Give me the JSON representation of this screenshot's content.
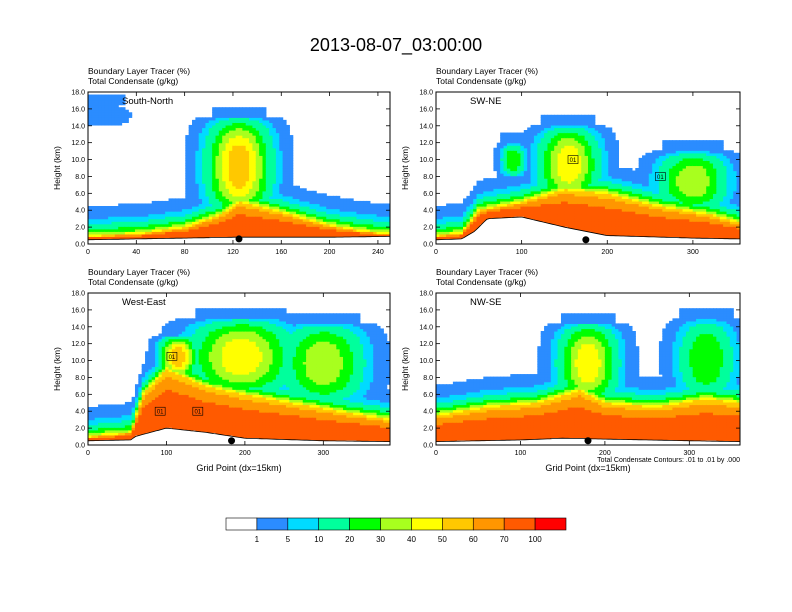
{
  "title": "2013-08-07_03:00:00",
  "palette": {
    "levels": [
      0,
      1,
      5,
      10,
      20,
      30,
      40,
      50,
      60,
      70,
      100
    ],
    "colors": [
      "#ffffff",
      "#2b8cff",
      "#00dbff",
      "#00ff9c",
      "#00ff00",
      "#a8ff1e",
      "#ffff00",
      "#ffc800",
      "#ff9600",
      "#ff5a00",
      "#ff0000"
    ],
    "labels": [
      "1",
      "5",
      "10",
      "20",
      "30",
      "40",
      "50",
      "60",
      "70",
      "100"
    ]
  },
  "contour_note": "Total Condensate Contours: .01 to .01 by .000",
  "chart_data": [
    {
      "type": "heatmap",
      "name": "South-North",
      "title_line1": "Boundary Layer Tracer    (%)",
      "title_line2": "Total Condensate    (g/kg)",
      "panel_label": "South-North",
      "ylabel": "Height (km)",
      "xlabel": "",
      "xlim": [
        0,
        250
      ],
      "ylim": [
        0,
        18
      ],
      "xticks": [
        0,
        40,
        80,
        120,
        160,
        200,
        240
      ],
      "xtick_labels": [
        "0",
        "40",
        "80",
        "120",
        "160",
        "200",
        "240"
      ],
      "yticks": [
        0,
        2,
        4,
        6,
        8,
        10,
        12,
        14,
        16,
        18
      ],
      "ytick_labels": [
        "0.0",
        "2.0",
        "4.0",
        "6.0",
        "8.0",
        "10.0",
        "12.0",
        "14.0",
        "16.0",
        "18.0"
      ],
      "terrain": [
        [
          0,
          0.5
        ],
        [
          40,
          0.6
        ],
        [
          80,
          0.7
        ],
        [
          120,
          0.8
        ],
        [
          160,
          0.8
        ],
        [
          200,
          0.8
        ],
        [
          250,
          0.9
        ]
      ],
      "tracer_layer_top": [
        [
          0,
          1.0
        ],
        [
          40,
          1.2
        ],
        [
          80,
          2.0
        ],
        [
          110,
          3.5
        ],
        [
          125,
          5.0
        ],
        [
          140,
          4.5
        ],
        [
          160,
          3.8
        ],
        [
          200,
          2.2
        ],
        [
          230,
          1.5
        ],
        [
          250,
          1.2
        ]
      ],
      "plumes": [
        {
          "x": 125,
          "y_base": 3.5,
          "y_top": 15.0,
          "width": 45,
          "peak": 60
        },
        {
          "x": 10,
          "y_base": 14.0,
          "y_top": 16.5,
          "width": 40,
          "peak": 5
        }
      ],
      "marker": {
        "x": 125,
        "y": 0.6
      }
    },
    {
      "type": "heatmap",
      "name": "SW-NE",
      "title_line1": "Boundary Layer Tracer    (%)",
      "title_line2": "Total Condensate    (g/kg)",
      "panel_label": "SW-NE",
      "ylabel": "Height (km)",
      "xlabel": "",
      "xlim": [
        0,
        355
      ],
      "ylim": [
        0,
        18
      ],
      "xticks": [
        0,
        100,
        200,
        300
      ],
      "xtick_labels": [
        "0",
        "100",
        "200",
        "300"
      ],
      "yticks": [
        0,
        2,
        4,
        6,
        8,
        10,
        12,
        14,
        16,
        18
      ],
      "ytick_labels": [
        "0.0",
        "2.0",
        "4.0",
        "6.0",
        "8.0",
        "10.0",
        "12.0",
        "14.0",
        "16.0",
        "18.0"
      ],
      "terrain": [
        [
          0,
          0.5
        ],
        [
          30,
          0.6
        ],
        [
          45,
          1.5
        ],
        [
          60,
          3.0
        ],
        [
          100,
          3.2
        ],
        [
          150,
          2.0
        ],
        [
          200,
          1.0
        ],
        [
          300,
          0.7
        ],
        [
          355,
          0.6
        ]
      ],
      "tracer_layer_top": [
        [
          0,
          1.0
        ],
        [
          30,
          1.3
        ],
        [
          50,
          4.0
        ],
        [
          100,
          5.0
        ],
        [
          150,
          6.5
        ],
        [
          200,
          6.0
        ],
        [
          260,
          4.5
        ],
        [
          320,
          3.5
        ],
        [
          355,
          2.5
        ]
      ],
      "plumes": [
        {
          "x": 155,
          "y_base": 5.0,
          "y_top": 14.0,
          "width": 60,
          "peak": 50
        },
        {
          "x": 300,
          "y_base": 4.0,
          "y_top": 11.0,
          "width": 70,
          "peak": 40
        },
        {
          "x": 90,
          "y_base": 8.0,
          "y_top": 12.0,
          "width": 25,
          "peak": 30
        }
      ],
      "marker": {
        "x": 175,
        "y": 0.5
      },
      "box_labels": [
        {
          "x": 160,
          "y": 10.0,
          "text": "01"
        },
        {
          "x": 262,
          "y": 8.0,
          "text": "01"
        }
      ]
    },
    {
      "type": "heatmap",
      "name": "West-East",
      "title_line1": "Boundary Layer Tracer    (%)",
      "title_line2": "Total Condensate    (g/kg)",
      "panel_label": "West-East",
      "ylabel": "Height (km)",
      "xlabel": "Grid Point (dx=15km)",
      "xlim": [
        0,
        385
      ],
      "ylim": [
        0,
        18
      ],
      "xticks": [
        0,
        100,
        200,
        300
      ],
      "xtick_labels": [
        "0",
        "100",
        "200",
        "300"
      ],
      "yticks": [
        0,
        2,
        4,
        6,
        8,
        10,
        12,
        14,
        16,
        18
      ],
      "ytick_labels": [
        "0.0",
        "2.0",
        "4.0",
        "6.0",
        "8.0",
        "10.0",
        "12.0",
        "14.0",
        "16.0",
        "18.0"
      ],
      "terrain": [
        [
          0,
          0.5
        ],
        [
          55,
          0.6
        ],
        [
          60,
          1.0
        ],
        [
          100,
          2.0
        ],
        [
          150,
          1.5
        ],
        [
          200,
          0.8
        ],
        [
          300,
          0.5
        ],
        [
          385,
          0.4
        ]
      ],
      "tracer_layer_top": [
        [
          0,
          1.0
        ],
        [
          55,
          1.5
        ],
        [
          70,
          6.0
        ],
        [
          100,
          9.0
        ],
        [
          150,
          7.0
        ],
        [
          200,
          6.0
        ],
        [
          260,
          5.0
        ],
        [
          320,
          4.0
        ],
        [
          385,
          3.0
        ]
      ],
      "plumes": [
        {
          "x": 195,
          "y_base": 6.0,
          "y_top": 15.0,
          "width": 110,
          "peak": 50
        },
        {
          "x": 300,
          "y_base": 5.0,
          "y_top": 14.5,
          "width": 90,
          "peak": 40
        },
        {
          "x": 115,
          "y_base": 8.0,
          "y_top": 13.0,
          "width": 40,
          "peak": 60
        }
      ],
      "marker": {
        "x": 183,
        "y": 0.5
      },
      "box_labels": [
        {
          "x": 107,
          "y": 10.5,
          "text": "01"
        },
        {
          "x": 92,
          "y": 4.0,
          "text": "01"
        },
        {
          "x": 140,
          "y": 4.0,
          "text": "01"
        }
      ]
    },
    {
      "type": "heatmap",
      "name": "NW-SE",
      "title_line1": "Boundary Layer Tracer    (%)",
      "title_line2": "Total Condensate    (g/kg)",
      "panel_label": "NW-SE",
      "ylabel": "Height (km)",
      "xlabel": "Grid Point (dx=15km)",
      "xlim": [
        0,
        360
      ],
      "ylim": [
        0,
        18
      ],
      "xticks": [
        0,
        100,
        200,
        300
      ],
      "xtick_labels": [
        "0",
        "100",
        "200",
        "300"
      ],
      "yticks": [
        0,
        2,
        4,
        6,
        8,
        10,
        12,
        14,
        16,
        18
      ],
      "ytick_labels": [
        "0.0",
        "2.0",
        "4.0",
        "6.0",
        "8.0",
        "10.0",
        "12.0",
        "14.0",
        "16.0",
        "18.0"
      ],
      "terrain": [
        [
          0,
          0.4
        ],
        [
          100,
          0.6
        ],
        [
          150,
          0.8
        ],
        [
          200,
          0.7
        ],
        [
          300,
          0.5
        ],
        [
          360,
          0.4
        ]
      ],
      "tracer_layer_top": [
        [
          0,
          3.5
        ],
        [
          60,
          4.5
        ],
        [
          120,
          5.0
        ],
        [
          170,
          6.5
        ],
        [
          200,
          5.0
        ],
        [
          260,
          4.5
        ],
        [
          320,
          5.5
        ],
        [
          360,
          5.0
        ]
      ],
      "plumes": [
        {
          "x": 180,
          "y_base": 5.0,
          "y_top": 14.5,
          "width": 60,
          "peak": 50
        },
        {
          "x": 320,
          "y_base": 5.5,
          "y_top": 15.0,
          "width": 60,
          "peak": 30
        }
      ],
      "marker": {
        "x": 180,
        "y": 0.5
      }
    }
  ]
}
